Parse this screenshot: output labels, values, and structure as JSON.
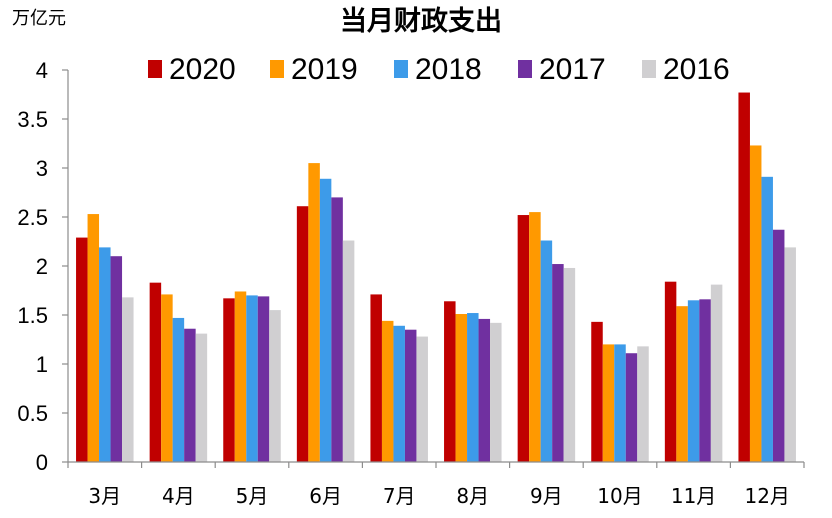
{
  "chart_data": {
    "type": "bar",
    "title": "当月财政支出",
    "ylabel": "万亿元",
    "xlabel": "",
    "ylim": [
      0,
      4
    ],
    "yticks": [
      "0",
      "0.5",
      "1",
      "1.5",
      "2",
      "2.5",
      "3",
      "3.5",
      "4"
    ],
    "ytick_values": [
      0,
      0.5,
      1,
      1.5,
      2,
      2.5,
      3,
      3.5,
      4
    ],
    "grid": false,
    "legend_position": "top",
    "categories": [
      "3月",
      "4月",
      "5月",
      "6月",
      "7月",
      "8月",
      "9月",
      "10月",
      "11月",
      "12月"
    ],
    "series": [
      {
        "name": "2020",
        "color": "#c00000",
        "values": [
          2.29,
          1.83,
          1.67,
          2.61,
          1.71,
          1.64,
          2.52,
          1.43,
          1.84,
          3.77
        ]
      },
      {
        "name": "2019",
        "color": "#ff9900",
        "values": [
          2.53,
          1.71,
          1.74,
          3.05,
          1.44,
          1.51,
          2.55,
          1.2,
          1.59,
          3.23
        ]
      },
      {
        "name": "2018",
        "color": "#3d9be9",
        "values": [
          2.19,
          1.47,
          1.7,
          2.89,
          1.39,
          1.52,
          2.26,
          1.2,
          1.65,
          2.91
        ]
      },
      {
        "name": "2017",
        "color": "#7030a0",
        "values": [
          2.1,
          1.36,
          1.69,
          2.7,
          1.35,
          1.46,
          2.02,
          1.11,
          1.66,
          2.37
        ]
      },
      {
        "name": "2016",
        "color": "#d0cfd1",
        "values": [
          1.68,
          1.31,
          1.55,
          2.26,
          1.28,
          1.42,
          1.98,
          1.18,
          1.81,
          2.19
        ]
      }
    ]
  }
}
